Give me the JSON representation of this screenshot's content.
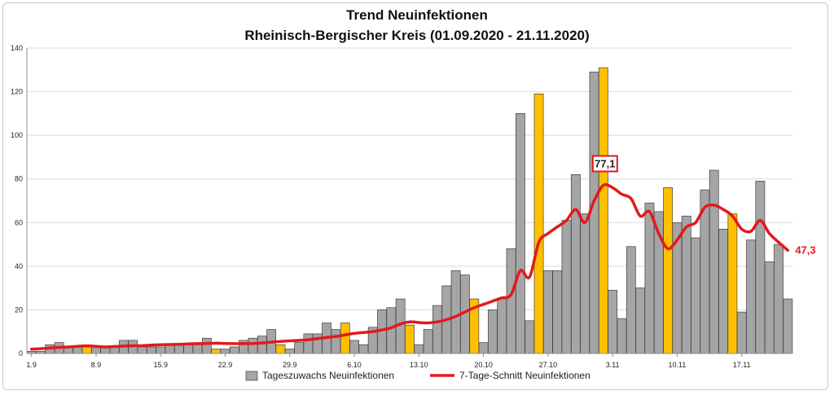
{
  "chart_data": {
    "type": "bar",
    "title": "Trend Neuinfektionen",
    "subtitle": "Rheinisch-Bergischer Kreis (01.09.2020 - 21.11.2020)",
    "ylim": [
      0,
      140
    ],
    "y_ticks": [
      0,
      20,
      40,
      60,
      80,
      100,
      120,
      140
    ],
    "x_ticks": [
      "1.9",
      "8.9",
      "15.9",
      "22.9",
      "29.9",
      "6.10",
      "13.10",
      "20.10",
      "27.10",
      "3.11",
      "10.11",
      "17.11"
    ],
    "grid": "horizontal",
    "legend_position": "bottom",
    "series": [
      {
        "name": "Tageszuwachs Neuinfektionen",
        "kind": "bar",
        "color": "#a5a5a5",
        "highlight_color": "#ffc000",
        "highlight_days": [
          6,
          20,
          27,
          34,
          41,
          48,
          55,
          62,
          69,
          76
        ],
        "values": [
          1,
          1,
          4,
          5,
          3,
          3,
          3,
          3,
          3,
          3,
          6,
          6,
          3,
          3,
          3,
          4,
          4,
          4,
          4,
          7,
          2,
          2,
          3,
          6,
          7,
          8,
          11,
          4,
          2,
          5,
          9,
          9,
          14,
          11,
          14,
          6,
          4,
          12,
          20,
          21,
          25,
          13,
          4,
          11,
          22,
          31,
          38,
          36,
          25,
          5,
          20,
          25,
          48,
          110,
          15,
          119,
          38,
          38,
          61,
          82,
          64,
          129,
          131,
          29,
          16,
          49,
          30,
          69,
          65,
          76,
          60,
          63,
          53,
          75,
          84,
          57,
          64,
          19,
          52,
          79,
          42,
          50,
          25
        ]
      },
      {
        "name": "7-Tage-Schnitt Neuinfektionen",
        "kind": "line",
        "color": "#e3191b",
        "values": [
          2,
          2.2,
          2.5,
          2.8,
          3,
          3.3,
          3.5,
          3.3,
          3,
          3.2,
          3.4,
          3.5,
          3.6,
          3.8,
          4,
          4.1,
          4.2,
          4.4,
          4.5,
          4.6,
          4.7,
          4.6,
          4.5,
          4.5,
          4.6,
          4.8,
          5.2,
          5.5,
          5.8,
          6,
          6.3,
          6.8,
          7.3,
          7.8,
          8.5,
          9.2,
          9.6,
          10,
          10.8,
          11.8,
          13.5,
          14.5,
          14.2,
          14,
          14.5,
          15.5,
          17,
          19,
          21,
          22.5,
          24,
          25.5,
          27,
          38,
          35,
          51,
          55,
          58,
          61,
          66,
          60,
          70,
          77.1,
          76,
          73,
          71,
          63,
          65,
          55,
          48,
          52,
          58,
          60,
          67,
          68,
          66,
          63,
          57,
          56,
          61,
          55,
          51,
          47.3
        ]
      }
    ],
    "annotations": [
      {
        "text": "77,1",
        "day": 62,
        "value": 77.1,
        "boxed": true
      },
      {
        "text": "47,3",
        "day": 82,
        "value": 47.3,
        "boxed": false
      }
    ]
  }
}
